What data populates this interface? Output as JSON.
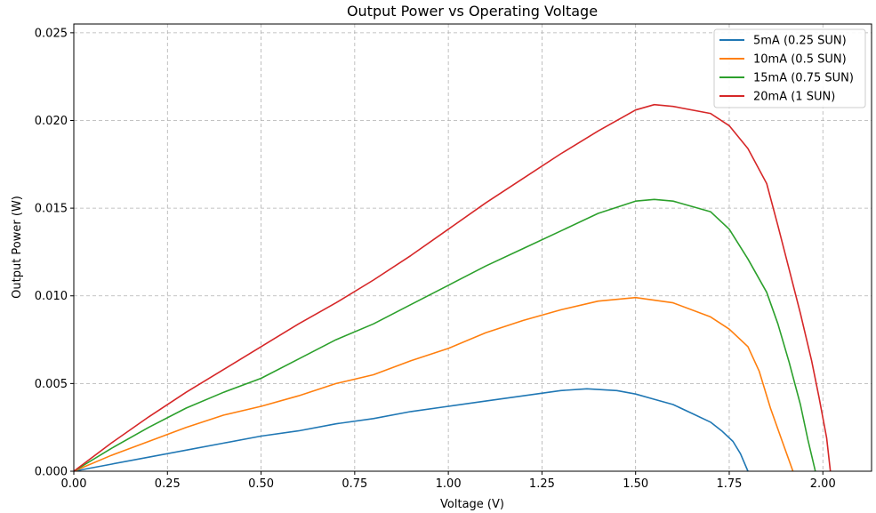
{
  "chart_data": {
    "type": "line",
    "title": "Output Power vs Operating Voltage",
    "xlabel": "Voltage (V)",
    "ylabel": "Output Power (W)",
    "xlim": [
      0,
      2.13
    ],
    "ylim": [
      0,
      0.0255
    ],
    "xticks": [
      0.0,
      0.25,
      0.5,
      0.75,
      1.0,
      1.25,
      1.5,
      1.75,
      2.0
    ],
    "xtick_labels": [
      "0.00",
      "0.25",
      "0.50",
      "0.75",
      "1.00",
      "1.25",
      "1.50",
      "1.75",
      "2.00"
    ],
    "yticks": [
      0.0,
      0.005,
      0.01,
      0.015,
      0.02,
      0.025
    ],
    "ytick_labels": [
      "0.000",
      "0.005",
      "0.010",
      "0.015",
      "0.020",
      "0.025"
    ],
    "grid": true,
    "legend_position": "top-right",
    "series": [
      {
        "name": "5mA (0.25 SUN)",
        "color": "#1f77b4",
        "x": [
          0.0,
          0.1,
          0.2,
          0.3,
          0.4,
          0.5,
          0.6,
          0.7,
          0.8,
          0.9,
          1.0,
          1.1,
          1.2,
          1.3,
          1.37,
          1.45,
          1.5,
          1.55,
          1.6,
          1.65,
          1.7,
          1.73,
          1.76,
          1.78,
          1.8
        ],
        "y": [
          0.0,
          0.0004,
          0.0008,
          0.0012,
          0.0016,
          0.002,
          0.0023,
          0.0027,
          0.003,
          0.0034,
          0.0037,
          0.004,
          0.0043,
          0.0046,
          0.0047,
          0.0046,
          0.0044,
          0.0041,
          0.0038,
          0.0033,
          0.0028,
          0.0023,
          0.0017,
          0.001,
          0.0
        ]
      },
      {
        "name": "10mA (0.5 SUN)",
        "color": "#ff7f0e",
        "x": [
          0.0,
          0.1,
          0.2,
          0.3,
          0.4,
          0.5,
          0.6,
          0.7,
          0.8,
          0.9,
          1.0,
          1.1,
          1.2,
          1.3,
          1.4,
          1.5,
          1.6,
          1.7,
          1.75,
          1.8,
          1.83,
          1.86,
          1.89,
          1.92
        ],
        "y": [
          0.0,
          0.0009,
          0.0017,
          0.0025,
          0.0032,
          0.0037,
          0.0043,
          0.005,
          0.0055,
          0.0063,
          0.007,
          0.0079,
          0.0086,
          0.0092,
          0.0097,
          0.0099,
          0.0096,
          0.0088,
          0.0081,
          0.0071,
          0.0057,
          0.0036,
          0.0018,
          0.0
        ]
      },
      {
        "name": "15mA (0.75 SUN)",
        "color": "#2ca02c",
        "x": [
          0.0,
          0.1,
          0.2,
          0.3,
          0.4,
          0.5,
          0.6,
          0.7,
          0.8,
          0.9,
          1.0,
          1.1,
          1.2,
          1.3,
          1.4,
          1.5,
          1.55,
          1.6,
          1.7,
          1.75,
          1.8,
          1.85,
          1.88,
          1.91,
          1.94,
          1.96,
          1.98
        ],
        "y": [
          0.0,
          0.0013,
          0.0025,
          0.0036,
          0.0045,
          0.0053,
          0.0064,
          0.0075,
          0.0084,
          0.0095,
          0.0106,
          0.0117,
          0.0127,
          0.0137,
          0.0147,
          0.0154,
          0.0155,
          0.0154,
          0.0148,
          0.0138,
          0.0121,
          0.0102,
          0.0084,
          0.0062,
          0.0038,
          0.0018,
          0.0
        ]
      },
      {
        "name": "20mA (1 SUN)",
        "color": "#d62728",
        "x": [
          0.0,
          0.1,
          0.2,
          0.3,
          0.4,
          0.5,
          0.6,
          0.7,
          0.8,
          0.9,
          1.0,
          1.1,
          1.2,
          1.3,
          1.4,
          1.5,
          1.55,
          1.6,
          1.7,
          1.75,
          1.8,
          1.85,
          1.88,
          1.91,
          1.94,
          1.97,
          1.99,
          2.01,
          2.02
        ],
        "y": [
          0.0,
          0.0016,
          0.0031,
          0.0045,
          0.0058,
          0.0071,
          0.0084,
          0.0096,
          0.0109,
          0.0123,
          0.0138,
          0.0153,
          0.0167,
          0.0181,
          0.0194,
          0.0206,
          0.0209,
          0.0208,
          0.0204,
          0.0197,
          0.0184,
          0.0164,
          0.014,
          0.0115,
          0.009,
          0.0063,
          0.0042,
          0.0019,
          0.0
        ]
      }
    ]
  }
}
